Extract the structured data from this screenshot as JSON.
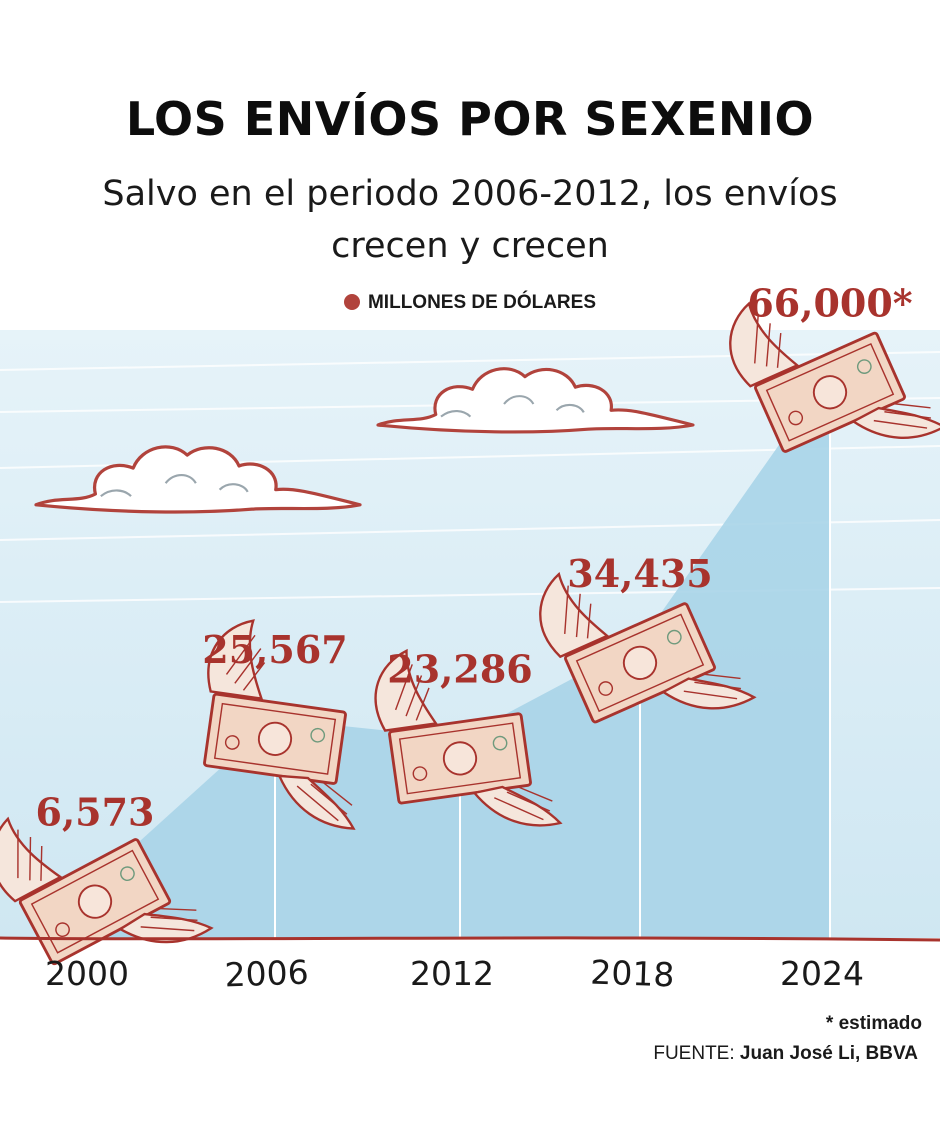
{
  "title": "LOS ENVÍOS POR SEXENIO",
  "subtitle": "Salvo en el periodo 2006-2012, los envíos crecen y crecen",
  "legend": {
    "label": "MILLONES DE DÓLARES",
    "color": "#b1433c"
  },
  "note": "* estimado",
  "source": {
    "prefix": "FUENTE:",
    "name": "Juan José Li, BBVA"
  },
  "colors": {
    "sky": "#d3e9f3",
    "area": "#a9d4e8",
    "label": "#a8332d",
    "baseline": "#a8332d",
    "cloud_outline": "#b1433c"
  },
  "chart_data": {
    "type": "area",
    "categories": [
      "2000",
      "2006",
      "2012",
      "2018",
      "2024"
    ],
    "values": [
      6573,
      25567,
      23286,
      34435,
      66000
    ],
    "value_labels": [
      "6,573",
      "25,567",
      "23,286",
      "34,435",
      "66,000*"
    ],
    "ylabel": "MILLONES DE DÓLARES",
    "ylim": [
      0,
      70000
    ],
    "grid": false,
    "legend_position": "top-center"
  }
}
